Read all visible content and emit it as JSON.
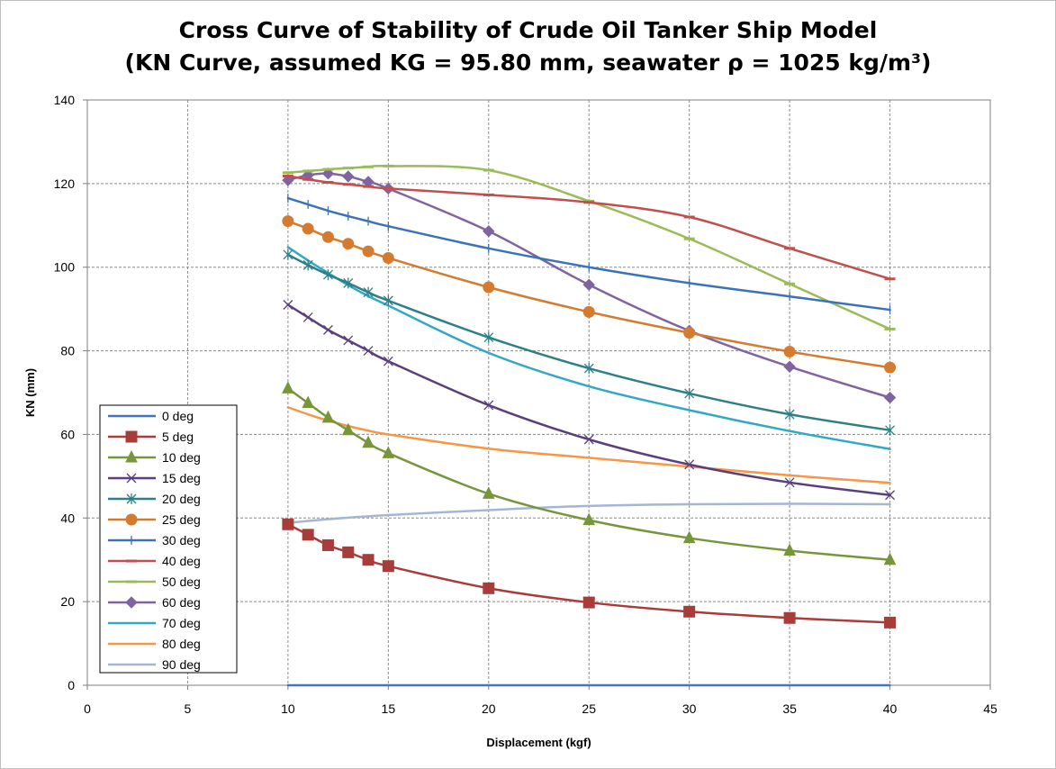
{
  "chart_data": {
    "type": "line",
    "title": "Cross Curve of Stability of Crude Oil Tanker Ship Model",
    "subtitle": "(KN Curve, assumed KG = 95.80 mm, seawater ρ = 1025 kg/m³)",
    "xlabel": "Displacement (kgf)",
    "ylabel": "KN (mm)",
    "xlim": [
      0,
      45
    ],
    "ylim": [
      0,
      140
    ],
    "xticks": [
      0,
      5,
      10,
      15,
      20,
      25,
      30,
      35,
      40,
      45
    ],
    "yticks": [
      0,
      20,
      40,
      60,
      80,
      100,
      120,
      140
    ],
    "grid": true,
    "legend_position": "bottom-left",
    "x": [
      10,
      11,
      12,
      13,
      14,
      15,
      20,
      25,
      30,
      35,
      40
    ],
    "series": [
      {
        "name": "0 deg",
        "color": "#4472c4",
        "marker": "none",
        "values": [
          0,
          0,
          0,
          0,
          0,
          0,
          0,
          0,
          0,
          0,
          0
        ]
      },
      {
        "name": "5 deg",
        "color": "#a83c3a",
        "marker": "square",
        "values": [
          38.5,
          36,
          33.5,
          31.8,
          30,
          28.5,
          23.2,
          19.8,
          17.6,
          16.1,
          15
        ]
      },
      {
        "name": "10 deg",
        "color": "#77963b",
        "marker": "triangle",
        "values": [
          71,
          67.5,
          64,
          61,
          58,
          55.5,
          45.8,
          39.5,
          35.2,
          32.2,
          30
        ]
      },
      {
        "name": "15 deg",
        "color": "#5b3f7d",
        "marker": "x",
        "values": [
          91,
          88,
          85,
          82.5,
          80,
          77.5,
          67,
          58.8,
          52.8,
          48.5,
          45.5
        ]
      },
      {
        "name": "20 deg",
        "color": "#2e8088",
        "marker": "star",
        "values": [
          103,
          100.5,
          98.2,
          96.2,
          94,
          92,
          83.2,
          75.8,
          69.8,
          64.8,
          61
        ]
      },
      {
        "name": "25 deg",
        "color": "#d57b30",
        "marker": "circle",
        "values": [
          111,
          109.2,
          107.2,
          105.6,
          103.8,
          102.2,
          95.2,
          89.3,
          84.3,
          79.8,
          76
        ]
      },
      {
        "name": "30 deg",
        "color": "#3c73b8",
        "marker": "plus",
        "values": [
          116.5,
          115,
          113.5,
          112.2,
          111,
          109.8,
          104.5,
          100,
          96.2,
          93,
          89.8
        ]
      },
      {
        "name": "40 deg",
        "color": "#c0504d",
        "marker": "dash",
        "values": [
          121.8,
          121,
          120.3,
          119.8,
          119.3,
          118.8,
          117.3,
          115.5,
          112,
          104.5,
          97.2
        ]
      },
      {
        "name": "50 deg",
        "color": "#9bbb59",
        "marker": "dash",
        "values": [
          122.6,
          123,
          123.4,
          123.7,
          124,
          124.2,
          123.2,
          115.8,
          106.8,
          96,
          85.2
        ]
      },
      {
        "name": "60 deg",
        "color": "#8064a2",
        "marker": "diamond",
        "values": [
          120.8,
          122,
          122.4,
          121.7,
          120.4,
          118.8,
          108.6,
          95.8,
          84.8,
          76.2,
          68.8
        ]
      },
      {
        "name": "70 deg",
        "color": "#31a9c4",
        "marker": "none",
        "values": [
          104.8,
          101.6,
          98.6,
          95.7,
          93.1,
          90.8,
          79.5,
          71.5,
          65.8,
          60.8,
          56.5
        ]
      },
      {
        "name": "80 deg",
        "color": "#f79646",
        "marker": "none",
        "values": [
          66.5,
          64.8,
          63.3,
          62,
          60.9,
          60,
          56.6,
          54.4,
          52.3,
          50.2,
          48.4
        ]
      },
      {
        "name": "90 deg",
        "color": "#a5b5d6",
        "marker": "none",
        "values": [
          38.8,
          39.3,
          39.7,
          40.1,
          40.4,
          40.7,
          41.9,
          42.9,
          43.3,
          43.4,
          43.3
        ]
      }
    ]
  }
}
